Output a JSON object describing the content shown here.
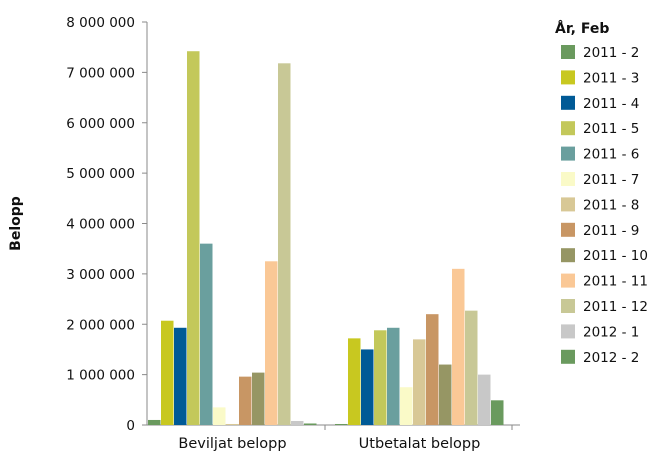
{
  "chart_data": {
    "type": "bar",
    "title": "",
    "xlabel": "",
    "ylabel": "Belopp",
    "ylim": [
      0,
      8000000
    ],
    "yticks": [
      0,
      1000000,
      2000000,
      3000000,
      4000000,
      5000000,
      6000000,
      7000000,
      8000000
    ],
    "ytick_labels": [
      "0",
      "1 000 000",
      "2 000 000",
      "3 000 000",
      "4 000 000",
      "5 000 000",
      "6 000 000",
      "7 000 000",
      "8 000 000"
    ],
    "grid": false,
    "legend": {
      "title": "År, Feb",
      "placement": "right"
    },
    "categories": [
      "Beviljat belopp",
      "Utbetalat belopp"
    ],
    "series": [
      {
        "name": "2011 - 2",
        "color": "#6a9a5e",
        "values": [
          100000,
          20000
        ]
      },
      {
        "name": "2011 - 3",
        "color": "#c8c820",
        "values": [
          2070000,
          1720000
        ]
      },
      {
        "name": "2011 - 4",
        "color": "#005a96",
        "values": [
          1930000,
          1500000
        ]
      },
      {
        "name": "2011 - 5",
        "color": "#c3c85a",
        "values": [
          7420000,
          1880000
        ]
      },
      {
        "name": "2011 - 6",
        "color": "#6a9f9e",
        "values": [
          3600000,
          1930000
        ]
      },
      {
        "name": "2011 - 7",
        "color": "#fafac8",
        "values": [
          350000,
          750000
        ]
      },
      {
        "name": "2011 - 8",
        "color": "#d8c896",
        "values": [
          20000,
          1700000
        ]
      },
      {
        "name": "2011 - 9",
        "color": "#c89664",
        "values": [
          960000,
          2200000
        ]
      },
      {
        "name": "2011 - 10",
        "color": "#969664",
        "values": [
          1040000,
          1200000
        ]
      },
      {
        "name": "2011 - 11",
        "color": "#fac896",
        "values": [
          3250000,
          3100000
        ]
      },
      {
        "name": "2011 - 12",
        "color": "#c8c896",
        "values": [
          7180000,
          2270000
        ]
      },
      {
        "name": "2012 - 1",
        "color": "#c8c8c8",
        "values": [
          80000,
          1000000
        ]
      },
      {
        "name": "2012 - 2",
        "color": "#6a9a5e",
        "values": [
          30000,
          490000
        ]
      }
    ]
  }
}
